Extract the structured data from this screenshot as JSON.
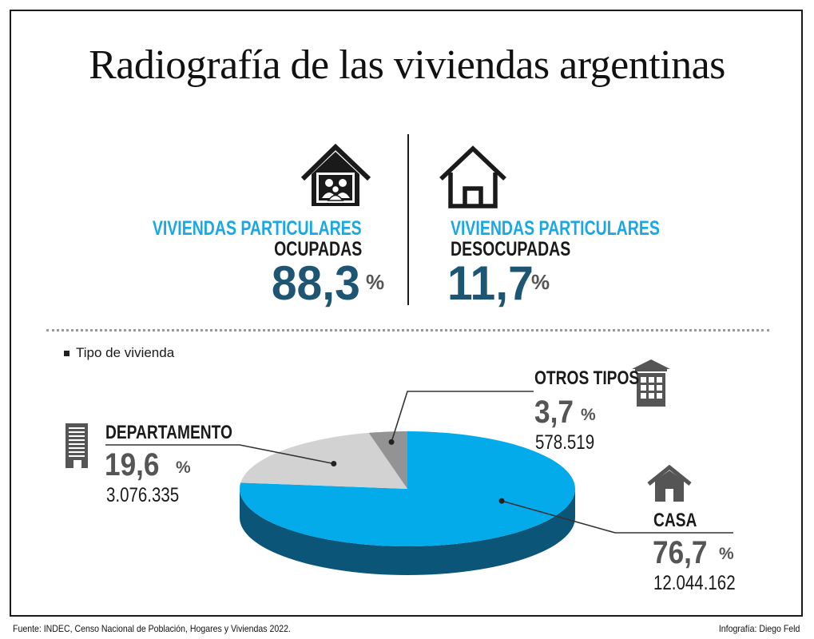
{
  "title": "Radiografía de las viviendas argentinas",
  "occupied": {
    "label_line1": "VIVIENDAS PARTICULARES",
    "label_line2": "OCUPADAS",
    "value": "88,3",
    "unit": "%"
  },
  "unoccupied": {
    "label_line1": "VIVIENDAS PARTICULARES",
    "label_line2": "DESOCUPADAS",
    "value": "11,7",
    "unit": "%"
  },
  "legend": "Tipo de vivienda",
  "chart_data": {
    "type": "pie",
    "title": "Tipo de vivienda",
    "slices": [
      {
        "name": "CASA",
        "percent": 76.7,
        "percent_label": "76,7",
        "count": "12.044.162",
        "color": "#04abea"
      },
      {
        "name": "DEPARTAMENTO",
        "percent": 19.6,
        "percent_label": "19,6",
        "count": "3.076.335",
        "color": "#d2d2d2"
      },
      {
        "name": "OTROS TIPOS",
        "percent": 3.7,
        "percent_label": "3,7",
        "count": "578.519",
        "color": "#939393"
      }
    ],
    "unit": "%"
  },
  "footer": {
    "source": "Fuente: INDEC, Censo Nacional de Población, Hogares y Viviendas 2022.",
    "credit": "Infografía: Diego Feld"
  }
}
